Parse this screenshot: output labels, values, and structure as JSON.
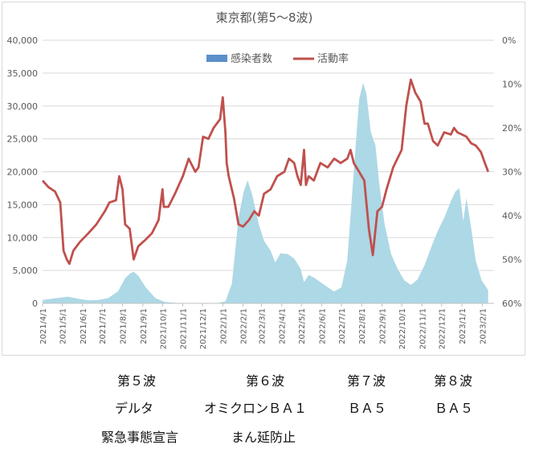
{
  "chart_data": {
    "type": "area+line",
    "title": "東京都(第5～8波)",
    "legend": {
      "position": "top",
      "items": [
        {
          "name": "感染者数",
          "color": "#5b8fc9"
        },
        {
          "name": "活動率",
          "color": "#c0504d"
        }
      ]
    },
    "x_ticks": [
      "2021/4/1",
      "2021/5/1",
      "2021/6/1",
      "2021/7/1",
      "2021/8/1",
      "2021/9/1",
      "2021/10/1",
      "2021/11/1",
      "2021/12/1",
      "2022/1/1",
      "2022/2/1",
      "2022/3/1",
      "2022/4/1",
      "2022/5/1",
      "2022/6/1",
      "2022/7/1",
      "2022/8/1",
      "2022/9/1",
      "2022/10/1",
      "2022/11/1",
      "2022/12/1",
      "2023/1/1",
      "2023/2/1"
    ],
    "y_left": {
      "ticks": [
        "0",
        "5,000",
        "10,000",
        "15,000",
        "20,000",
        "25,000",
        "30,000",
        "35,000",
        "40,000"
      ],
      "range": [
        0,
        40000
      ]
    },
    "y_right": {
      "ticks": [
        "0%",
        "10%",
        "20%",
        "30%",
        "40%",
        "50%",
        "60%"
      ],
      "range": [
        0,
        60
      ],
      "inverted": true
    },
    "series": [
      {
        "name": "感染者数",
        "type": "area",
        "color": "#add8e6",
        "points": [
          [
            "2021-04-01",
            500
          ],
          [
            "2021-04-15",
            700
          ],
          [
            "2021-05-01",
            900
          ],
          [
            "2021-05-10",
            1000
          ],
          [
            "2021-05-25",
            700
          ],
          [
            "2021-06-10",
            450
          ],
          [
            "2021-06-25",
            500
          ],
          [
            "2021-07-10",
            800
          ],
          [
            "2021-07-25",
            1800
          ],
          [
            "2021-08-05",
            3800
          ],
          [
            "2021-08-12",
            4500
          ],
          [
            "2021-08-18",
            4800
          ],
          [
            "2021-08-25",
            4200
          ],
          [
            "2021-09-05",
            2500
          ],
          [
            "2021-09-20",
            800
          ],
          [
            "2021-10-05",
            200
          ],
          [
            "2021-10-25",
            50
          ],
          [
            "2021-11-30",
            20
          ],
          [
            "2021-12-25",
            50
          ],
          [
            "2022-01-05",
            300
          ],
          [
            "2022-01-15",
            3000
          ],
          [
            "2022-01-25",
            13000
          ],
          [
            "2022-02-02",
            17000
          ],
          [
            "2022-02-08",
            18700
          ],
          [
            "2022-02-15",
            16500
          ],
          [
            "2022-02-25",
            12000
          ],
          [
            "2022-03-05",
            9500
          ],
          [
            "2022-03-15",
            8000
          ],
          [
            "2022-03-22",
            6200
          ],
          [
            "2022-03-30",
            7600
          ],
          [
            "2022-04-10",
            7500
          ],
          [
            "2022-04-20",
            6800
          ],
          [
            "2022-04-30",
            5200
          ],
          [
            "2022-05-05",
            3200
          ],
          [
            "2022-05-12",
            4300
          ],
          [
            "2022-05-22",
            3800
          ],
          [
            "2022-06-05",
            2800
          ],
          [
            "2022-06-20",
            1800
          ],
          [
            "2022-07-01",
            2400
          ],
          [
            "2022-07-10",
            6500
          ],
          [
            "2022-07-20",
            20000
          ],
          [
            "2022-07-28",
            31000
          ],
          [
            "2022-08-03",
            33500
          ],
          [
            "2022-08-08",
            32000
          ],
          [
            "2022-08-15",
            26000
          ],
          [
            "2022-08-22",
            24000
          ],
          [
            "2022-08-28",
            18000
          ],
          [
            "2022-09-05",
            12000
          ],
          [
            "2022-09-15",
            7500
          ],
          [
            "2022-09-25",
            5200
          ],
          [
            "2022-10-05",
            3500
          ],
          [
            "2022-10-15",
            2800
          ],
          [
            "2022-10-25",
            3600
          ],
          [
            "2022-11-05",
            5800
          ],
          [
            "2022-11-15",
            8500
          ],
          [
            "2022-11-25",
            11000
          ],
          [
            "2022-12-05",
            13000
          ],
          [
            "2022-12-15",
            15500
          ],
          [
            "2022-12-22",
            17000
          ],
          [
            "2022-12-28",
            17500
          ],
          [
            "2023-01-03",
            12500
          ],
          [
            "2023-01-08",
            16000
          ],
          [
            "2023-01-15",
            11500
          ],
          [
            "2023-01-22",
            6500
          ],
          [
            "2023-01-31",
            3500
          ],
          [
            "2023-02-10",
            2000
          ]
        ]
      },
      {
        "name": "活動率",
        "type": "line",
        "color": "#c0504d",
        "axis": "right",
        "points": [
          [
            "2021-04-01",
            32
          ],
          [
            "2021-04-10",
            33.5
          ],
          [
            "2021-04-20",
            34.5
          ],
          [
            "2021-04-28",
            37
          ],
          [
            "2021-05-03",
            48
          ],
          [
            "2021-05-08",
            50
          ],
          [
            "2021-05-12",
            51
          ],
          [
            "2021-05-18",
            48
          ],
          [
            "2021-05-28",
            46
          ],
          [
            "2021-06-10",
            44
          ],
          [
            "2021-06-22",
            42
          ],
          [
            "2021-07-05",
            39
          ],
          [
            "2021-07-12",
            37
          ],
          [
            "2021-07-22",
            36.5
          ],
          [
            "2021-07-27",
            31
          ],
          [
            "2021-08-01",
            34
          ],
          [
            "2021-08-05",
            42
          ],
          [
            "2021-08-12",
            43
          ],
          [
            "2021-08-18",
            50
          ],
          [
            "2021-08-25",
            47
          ],
          [
            "2021-09-05",
            45.5
          ],
          [
            "2021-09-15",
            44
          ],
          [
            "2021-09-25",
            41
          ],
          [
            "2021-10-01",
            34
          ],
          [
            "2021-10-03",
            38
          ],
          [
            "2021-10-10",
            38
          ],
          [
            "2021-10-20",
            35
          ],
          [
            "2021-11-01",
            31
          ],
          [
            "2021-11-10",
            27
          ],
          [
            "2021-11-20",
            30
          ],
          [
            "2021-11-25",
            29
          ],
          [
            "2021-12-02",
            22
          ],
          [
            "2021-12-10",
            22.5
          ],
          [
            "2021-12-18",
            20
          ],
          [
            "2021-12-28",
            18
          ],
          [
            "2022-01-01",
            13
          ],
          [
            "2022-01-05",
            21
          ],
          [
            "2022-01-07",
            28
          ],
          [
            "2022-01-10",
            31
          ],
          [
            "2022-01-18",
            36
          ],
          [
            "2022-01-25",
            42
          ],
          [
            "2022-02-01",
            42.5
          ],
          [
            "2022-02-10",
            41
          ],
          [
            "2022-02-18",
            39
          ],
          [
            "2022-02-25",
            40
          ],
          [
            "2022-03-05",
            35
          ],
          [
            "2022-03-15",
            34
          ],
          [
            "2022-03-25",
            31
          ],
          [
            "2022-04-05",
            30
          ],
          [
            "2022-04-12",
            27
          ],
          [
            "2022-04-20",
            28
          ],
          [
            "2022-04-25",
            31
          ],
          [
            "2022-04-30",
            33
          ],
          [
            "2022-05-05",
            25
          ],
          [
            "2022-05-08",
            33
          ],
          [
            "2022-05-12",
            31
          ],
          [
            "2022-05-20",
            32
          ],
          [
            "2022-05-30",
            28
          ],
          [
            "2022-06-10",
            29
          ],
          [
            "2022-06-20",
            27
          ],
          [
            "2022-06-30",
            28
          ],
          [
            "2022-07-10",
            27
          ],
          [
            "2022-07-15",
            25
          ],
          [
            "2022-07-20",
            28
          ],
          [
            "2022-07-28",
            30
          ],
          [
            "2022-08-05",
            32
          ],
          [
            "2022-08-12",
            43
          ],
          [
            "2022-08-18",
            49
          ],
          [
            "2022-08-25",
            39
          ],
          [
            "2022-09-01",
            38
          ],
          [
            "2022-09-08",
            34
          ],
          [
            "2022-09-18",
            29
          ],
          [
            "2022-10-01",
            25
          ],
          [
            "2022-10-08",
            15
          ],
          [
            "2022-10-15",
            9
          ],
          [
            "2022-10-22",
            12
          ],
          [
            "2022-10-30",
            14
          ],
          [
            "2022-11-05",
            19
          ],
          [
            "2022-11-10",
            19
          ],
          [
            "2022-11-18",
            23
          ],
          [
            "2022-11-25",
            24
          ],
          [
            "2022-12-05",
            21
          ],
          [
            "2022-12-15",
            21.5
          ],
          [
            "2022-12-20",
            20
          ],
          [
            "2022-12-25",
            21
          ],
          [
            "2023-01-08",
            22
          ],
          [
            "2023-01-15",
            23.5
          ],
          [
            "2023-01-22",
            24
          ],
          [
            "2023-01-30",
            25.5
          ],
          [
            "2023-02-05",
            28
          ],
          [
            "2023-02-10",
            30
          ]
        ]
      }
    ]
  },
  "annotations": {
    "wave_labels": [
      "第５波",
      "第６波",
      "第７波",
      "第８波"
    ],
    "variant_labels": [
      "デルタ",
      "オミクロンＢＡ１",
      "ＢＡ５",
      "ＢＡ５"
    ],
    "measure_labels": [
      "緊急事態宣言",
      "まん延防止"
    ]
  }
}
